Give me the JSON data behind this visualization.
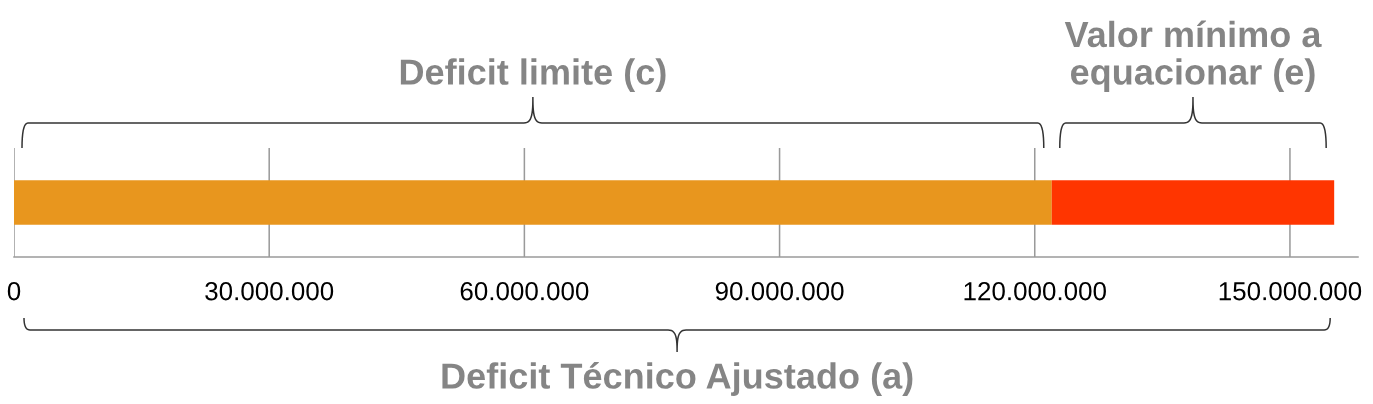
{
  "chart_data": {
    "type": "bar",
    "orientation": "horizontal",
    "stacked": true,
    "categories": [
      null
    ],
    "series": [
      {
        "name": "Deficit limite (c)",
        "color": "#e8961e",
        "values": [
          122000000
        ]
      },
      {
        "name": "Valor mínimo a\nequacionar (e)",
        "color": "#ff3500",
        "values": [
          33200000
        ]
      }
    ],
    "xlim": [
      0,
      158000000
    ],
    "xticks": [
      0,
      {
        "value": 30000000,
        "label": "30.000.000"
      },
      {
        "value": 60000000,
        "label": "60.000.000"
      },
      {
        "value": 90000000,
        "label": "90.000.000"
      },
      {
        "value": 120000000,
        "label": "120.000.000"
      },
      {
        "value": 150000000,
        "label": "150.000.000"
      }
    ],
    "grid": "x",
    "annotations": [
      "Deficit Técnico Ajustado (a)"
    ]
  }
}
